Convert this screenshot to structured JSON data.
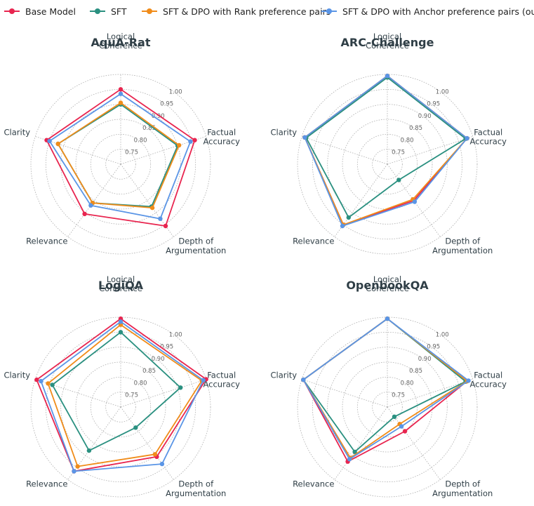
{
  "legend": {
    "items": [
      {
        "label": "Base Model",
        "color": "#e8254f"
      },
      {
        "label": "SFT",
        "color": "#2a9080"
      },
      {
        "label": "SFT & DPO with Rank preference pairs",
        "color": "#f08c1a"
      },
      {
        "label": "SFT & DPO with Anchor preference pairs (ours)",
        "color": "#5a95e6"
      }
    ]
  },
  "chart_data": [
    {
      "type": "radar",
      "title": "AquA-Rat",
      "axes": [
        "Logical\nCoherence",
        "Factual\nAccuracy",
        "Depth of\nArgumentation",
        "Relevance",
        "Clarity"
      ],
      "rlim": [
        0.7,
        1.0
      ],
      "ticks": [
        0.75,
        0.8,
        0.85,
        0.9,
        0.95,
        1.0
      ],
      "series": [
        {
          "name": "Base Model",
          "values": [
            0.95,
            0.96,
            0.955,
            0.905,
            0.96
          ]
        },
        {
          "name": "SFT",
          "values": [
            0.9,
            0.9,
            0.875,
            0.86,
            0.92
          ]
        },
        {
          "name": "SFT & DPO with Rank preference pairs",
          "values": [
            0.905,
            0.905,
            0.88,
            0.86,
            0.92
          ]
        },
        {
          "name": "SFT & DPO with Anchor preference pairs (ours)",
          "values": [
            0.935,
            0.945,
            0.925,
            0.87,
            0.95
          ]
        }
      ]
    },
    {
      "type": "radar",
      "title": "ARC-Challenge",
      "axes": [
        "Logical\nCoherence",
        "Factual\nAccuracy",
        "Depth of\nArgumentation",
        "Relevance",
        "Clarity"
      ],
      "rlim": [
        0.7,
        1.0
      ],
      "ticks": [
        0.75,
        0.8,
        0.85,
        0.9,
        0.95,
        1.0
      ],
      "series": [
        {
          "name": "Base Model",
          "values": [
            0.995,
            0.98,
            0.85,
            0.95,
            0.99
          ]
        },
        {
          "name": "SFT",
          "values": [
            0.99,
            0.975,
            0.765,
            0.92,
            0.985
          ]
        },
        {
          "name": "SFT & DPO with Rank preference pairs",
          "values": [
            0.995,
            0.98,
            0.845,
            0.95,
            0.99
          ]
        },
        {
          "name": "SFT & DPO with Anchor preference pairs (ours)",
          "values": [
            0.995,
            0.98,
            0.855,
            0.955,
            0.99
          ]
        }
      ]
    },
    {
      "type": "radar",
      "title": "LogiQA",
      "axes": [
        "Logical\nCoherence",
        "Factual\nAccuracy",
        "Depth of\nArgumentation",
        "Relevance",
        "Clarity"
      ],
      "rlim": [
        0.7,
        1.0
      ],
      "ticks": [
        0.75,
        0.8,
        0.85,
        0.9,
        0.95,
        1.0
      ],
      "series": [
        {
          "name": "Base Model",
          "values": [
            0.995,
            1.0,
            0.905,
            0.965,
            0.995
          ]
        },
        {
          "name": "SFT",
          "values": [
            0.95,
            0.91,
            0.785,
            0.88,
            0.94
          ]
        },
        {
          "name": "SFT & DPO with Rank preference pairs",
          "values": [
            0.975,
            0.985,
            0.895,
            0.945,
            0.955
          ]
        },
        {
          "name": "SFT & DPO with Anchor preference pairs (ours)",
          "values": [
            0.985,
            0.99,
            0.935,
            0.965,
            0.98
          ]
        }
      ]
    },
    {
      "type": "radar",
      "title": "OpenbookQA",
      "axes": [
        "Logical\nCoherence",
        "Factual\nAccuracy",
        "Depth of\nArgumentation",
        "Relevance",
        "Clarity"
      ],
      "rlim": [
        0.7,
        1.0
      ],
      "ticks": [
        0.75,
        0.8,
        0.85,
        0.9,
        0.95,
        1.0
      ],
      "series": [
        {
          "name": "Base Model",
          "values": [
            0.995,
            0.98,
            0.8,
            0.925,
            0.995
          ]
        },
        {
          "name": "SFT",
          "values": [
            0.995,
            0.975,
            0.74,
            0.885,
            0.995
          ]
        },
        {
          "name": "SFT & DPO with Rank preference pairs",
          "values": [
            0.995,
            0.98,
            0.77,
            0.91,
            0.995
          ]
        },
        {
          "name": "SFT & DPO with Anchor preference pairs (ours)",
          "values": [
            0.995,
            0.985,
            0.78,
            0.915,
            0.995
          ]
        }
      ]
    }
  ]
}
